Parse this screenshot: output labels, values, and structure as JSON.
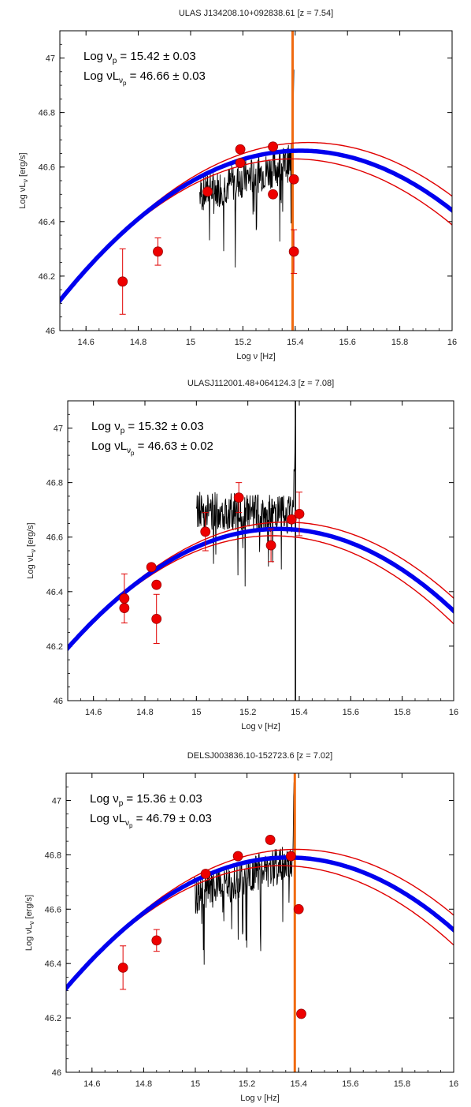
{
  "chart_data": [
    {
      "type": "scatter",
      "title": "ULAS J134208.10+092838.61   [z = 7.54]",
      "xlabel": "Log ν  [Hz]",
      "ylabel_main": "Log νL",
      "ylabel_sub": "ν",
      "ylabel_unit": "  [erg/s]",
      "xlim": [
        14.5,
        16
      ],
      "ylim": [
        46,
        47.1
      ],
      "xticks": [
        14.6,
        14.8,
        15,
        15.2,
        15.4,
        15.6,
        15.8,
        16
      ],
      "xtick_labels": [
        "14.6",
        "14.8",
        "15",
        "15.2",
        "15.4",
        "15.6",
        "15.8",
        "16"
      ],
      "yticks": [
        46,
        46.2,
        46.4,
        46.6,
        46.8,
        47
      ],
      "ytick_labels": [
        "46",
        "46.2",
        "46.4",
        "46.6",
        "46.8",
        "47"
      ],
      "annotation": {
        "line1_main": "Log ν",
        "line1_sub": "p",
        "line1_rest": " = 15.42 ± 0.03",
        "line2_main": "Log νL",
        "line2_sub": "ν",
        "line2_subsub": "p",
        "line2_rest": " = 46.66 ± 0.03"
      },
      "peak": {
        "nu_p": 15.42,
        "nuL_p": 46.66,
        "envelope": 0.03
      },
      "vline": {
        "x": 15.39,
        "color": "#f06a10"
      },
      "points": [
        {
          "x": 14.74,
          "y": 46.18,
          "err": 0.12
        },
        {
          "x": 14.875,
          "y": 46.29,
          "err": 0.05
        },
        {
          "x": 15.065,
          "y": 46.51,
          "err": 0
        },
        {
          "x": 15.19,
          "y": 46.665,
          "err": 0
        },
        {
          "x": 15.19,
          "y": 46.615,
          "err": 0
        },
        {
          "x": 15.315,
          "y": 46.675,
          "err": 0
        },
        {
          "x": 15.315,
          "y": 46.5,
          "err": 0
        },
        {
          "x": 15.395,
          "y": 46.555,
          "err": 0
        },
        {
          "x": 15.395,
          "y": 46.29,
          "err": 0.08
        }
      ],
      "spectrum": {
        "x_start": 15.035,
        "x_end": 15.395,
        "base": [
          46.5,
          46.62
        ],
        "seed": 7
      }
    },
    {
      "type": "scatter",
      "title": "ULASJ112001.48+064124.3   [z = 7.08]",
      "xlabel": "Log ν  [Hz]",
      "ylabel_main": "Log νL",
      "ylabel_sub": "ν",
      "ylabel_unit": "  [erg/s]",
      "xlim": [
        14.5,
        16
      ],
      "ylim": [
        46,
        47.1
      ],
      "xticks": [
        14.6,
        14.8,
        15,
        15.2,
        15.4,
        15.6,
        15.8,
        16
      ],
      "xtick_labels": [
        "14.6",
        "14.8",
        "15",
        "15.2",
        "15.4",
        "15.6",
        "15.8",
        "16"
      ],
      "yticks": [
        46,
        46.2,
        46.4,
        46.6,
        46.8,
        47
      ],
      "ytick_labels": [
        "46",
        "46.2",
        "46.4",
        "46.6",
        "46.8",
        "47"
      ],
      "annotation": {
        "line1_main": "Log ν",
        "line1_sub": "p",
        "line1_rest": " = 15.32 ± 0.03",
        "line2_main": "Log νL",
        "line2_sub": "ν",
        "line2_subsub": "p",
        "line2_rest": " = 46.63 ± 0.02"
      },
      "peak": {
        "nu_p": 15.32,
        "nuL_p": 46.63,
        "envelope": 0.025
      },
      "vline": {
        "x": 15.385,
        "color": "#000000"
      },
      "points": [
        {
          "x": 14.72,
          "y": 46.375,
          "err": 0.09
        },
        {
          "x": 14.72,
          "y": 46.34,
          "err": 0
        },
        {
          "x": 14.825,
          "y": 46.49,
          "err": 0
        },
        {
          "x": 14.845,
          "y": 46.425,
          "err": 0
        },
        {
          "x": 14.845,
          "y": 46.3,
          "err": 0.09
        },
        {
          "x": 15.035,
          "y": 46.62,
          "err": 0.07
        },
        {
          "x": 15.165,
          "y": 46.745,
          "err": 0.055
        },
        {
          "x": 15.29,
          "y": 46.57,
          "err": 0.06
        },
        {
          "x": 15.37,
          "y": 46.665,
          "err": 0
        },
        {
          "x": 15.4,
          "y": 46.685,
          "err": 0.08
        }
      ],
      "spectrum": {
        "x_start": 15.0,
        "x_end": 15.385,
        "base": [
          46.7,
          46.68
        ],
        "seed": 13
      }
    },
    {
      "type": "scatter",
      "title": "DELSJ003836.10-152723.6   [z = 7.02]",
      "xlabel": "Log ν  [Hz]",
      "ylabel_main": "Log νL",
      "ylabel_sub": "ν",
      "ylabel_unit": "  [erg/s]",
      "xlim": [
        14.5,
        16
      ],
      "ylim": [
        46,
        47.1
      ],
      "xticks": [
        14.6,
        14.8,
        15,
        15.2,
        15.4,
        15.6,
        15.8,
        16
      ],
      "xtick_labels": [
        "14.6",
        "14.8",
        "15",
        "15.2",
        "15.4",
        "15.6",
        "15.8",
        "16"
      ],
      "yticks": [
        46,
        46.2,
        46.4,
        46.6,
        46.8,
        47
      ],
      "ytick_labels": [
        "46",
        "46.2",
        "46.4",
        "46.6",
        "46.8",
        "47"
      ],
      "annotation": {
        "line1_main": "Log ν",
        "line1_sub": "p",
        "line1_rest": " = 15.36 ± 0.03",
        "line2_main": "Log νL",
        "line2_sub": "ν",
        "line2_subsub": "p",
        "line2_rest": " = 46.79 ± 0.03"
      },
      "peak": {
        "nu_p": 15.36,
        "nuL_p": 46.79,
        "envelope": 0.03
      },
      "vline": {
        "x": 15.385,
        "color": "#f06a10"
      },
      "points": [
        {
          "x": 14.72,
          "y": 46.385,
          "err": 0.08
        },
        {
          "x": 14.85,
          "y": 46.485,
          "err": 0.04
        },
        {
          "x": 15.04,
          "y": 46.73,
          "err": 0
        },
        {
          "x": 15.165,
          "y": 46.795,
          "err": 0
        },
        {
          "x": 15.29,
          "y": 46.855,
          "err": 0
        },
        {
          "x": 15.37,
          "y": 46.795,
          "err": 0
        },
        {
          "x": 15.4,
          "y": 46.6,
          "err": 0
        },
        {
          "x": 15.41,
          "y": 46.215,
          "err": 0
        }
      ],
      "spectrum": {
        "x_start": 14.995,
        "x_end": 15.385,
        "base": [
          46.65,
          46.78
        ],
        "seed": 29
      }
    }
  ]
}
